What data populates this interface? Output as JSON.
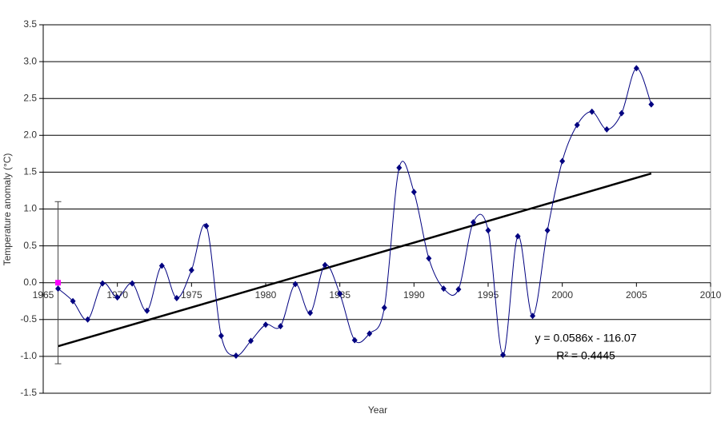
{
  "chart_data": {
    "type": "line",
    "x_label": "Year",
    "y_label": "Temperature anomaly (°C)",
    "x": [
      1966,
      1967,
      1968,
      1969,
      1970,
      1971,
      1972,
      1973,
      1974,
      1975,
      1976,
      1977,
      1978,
      1979,
      1980,
      1981,
      1982,
      1983,
      1984,
      1985,
      1986,
      1987,
      1988,
      1989,
      1990,
      1991,
      1992,
      1993,
      1994,
      1995,
      1996,
      1997,
      1998,
      1999,
      2000,
      2001,
      2002,
      2003,
      2004,
      2005,
      2006
    ],
    "series": [
      {
        "color": "#000080",
        "values": [
          -0.08,
          -0.25,
          -0.5,
          -0.01,
          -0.2,
          -0.01,
          -0.38,
          0.23,
          -0.21,
          0.17,
          0.77,
          -0.72,
          -0.99,
          -0.79,
          -0.57,
          -0.59,
          -0.02,
          -0.41,
          0.24,
          -0.15,
          -0.78,
          -0.69,
          -0.34,
          1.56,
          1.23,
          0.33,
          -0.08,
          -0.09,
          0.82,
          0.71,
          -0.98,
          0.63,
          -0.45,
          0.71,
          1.65,
          2.14,
          2.32,
          2.08,
          2.3,
          2.91,
          2.42
        ]
      }
    ],
    "reference_point": {
      "x": 1966,
      "value": 0,
      "error": 1.1,
      "color": "#ff00ff"
    },
    "trendline": {
      "slope": 0.0586,
      "intercept": -116.07,
      "color": "#000000",
      "equation": "y = 0.0586x - 116.07",
      "r2": "R² = 0.4445"
    },
    "xlim": [
      1965,
      2010
    ],
    "xticks": [
      1965,
      1970,
      1975,
      1980,
      1985,
      1990,
      1995,
      2000,
      2005,
      2010
    ],
    "ylim": [
      -1.5,
      3.5
    ],
    "yticks": [
      -1.5,
      {
        "value": -1,
        "label": "-1.0"
      },
      -0.5,
      {
        "value": 0,
        "label": "0.0"
      },
      0.5,
      {
        "value": 1,
        "label": "1.0"
      },
      1.5,
      {
        "value": 2,
        "label": "2.0"
      },
      2.5,
      {
        "value": 3,
        "label": "3.0"
      },
      3.5
    ],
    "grid": true
  }
}
